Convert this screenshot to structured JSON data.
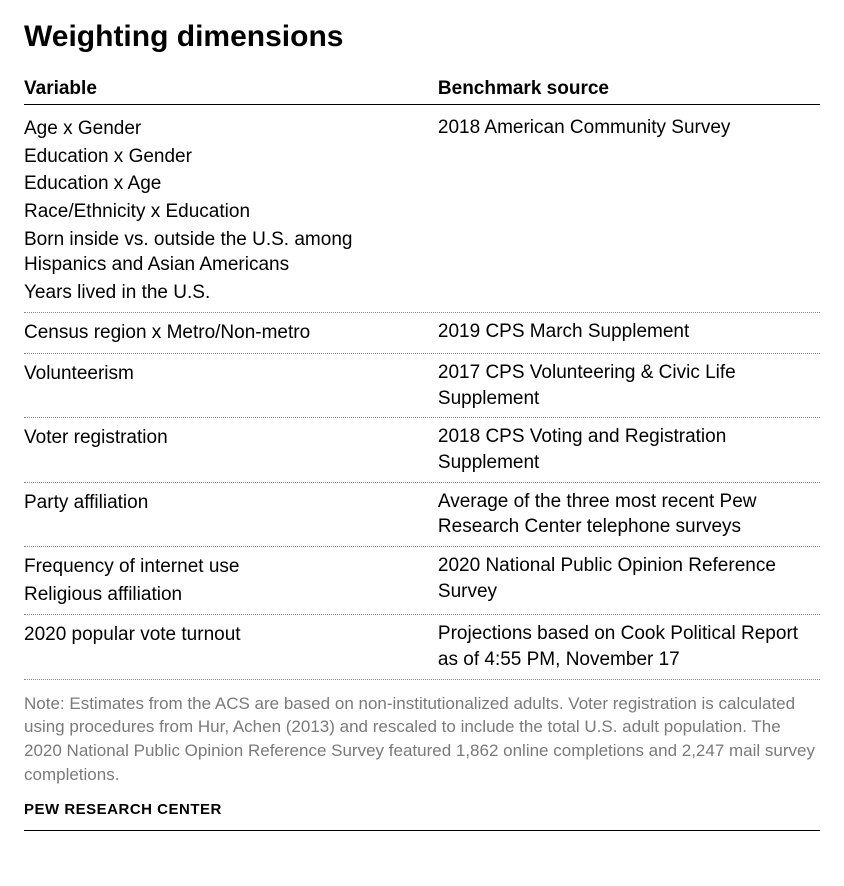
{
  "title": "Weighting dimensions",
  "columns": {
    "left": "Variable",
    "right": "Benchmark source"
  },
  "groups": [
    {
      "variables": [
        "Age x Gender",
        "Education x Gender",
        "Education x Age",
        "Race/Ethnicity x Education",
        "Born inside vs. outside the U.S. among Hispanics and Asian Americans",
        "Years lived in the U.S."
      ],
      "benchmark": "2018 American Community Survey"
    },
    {
      "variables": [
        "Census region x Metro/Non-metro"
      ],
      "benchmark": "2019 CPS March Supplement"
    },
    {
      "variables": [
        "Volunteerism"
      ],
      "benchmark": "2017 CPS Volunteering & Civic Life Supplement"
    },
    {
      "variables": [
        "Voter registration"
      ],
      "benchmark": "2018 CPS Voting and Registration Supplement"
    },
    {
      "variables": [
        "Party affiliation"
      ],
      "benchmark": "Average of the three most recent Pew Research Center telephone surveys"
    },
    {
      "variables": [
        "Frequency of internet use",
        "Religious affiliation"
      ],
      "benchmark": "2020 National Public Opinion Reference Survey"
    },
    {
      "variables": [
        "2020 popular vote turnout"
      ],
      "benchmark": "Projections based on Cook Political Report as of 4:55 PM, November 17"
    }
  ],
  "note": "Note: Estimates from the ACS are based on non-institutionalized adults. Voter registration is calculated using procedures from Hur, Achen (2013) and rescaled to include the total U.S. adult population. The 2020 National Public Opinion Reference Survey featured 1,862 online completions and 2,247 mail survey completions.",
  "source": "PEW RESEARCH CENTER",
  "style": {
    "title_fontsize": 30,
    "header_fontsize": 19,
    "cell_fontsize": 19,
    "note_fontsize": 17,
    "note_color": "#7a7a7a",
    "text_color": "#000000",
    "divider_color": "#888888",
    "rule_color": "#000000",
    "background": "#ffffff",
    "font_family_heading": "Arial",
    "font_family_body": "Arial"
  }
}
